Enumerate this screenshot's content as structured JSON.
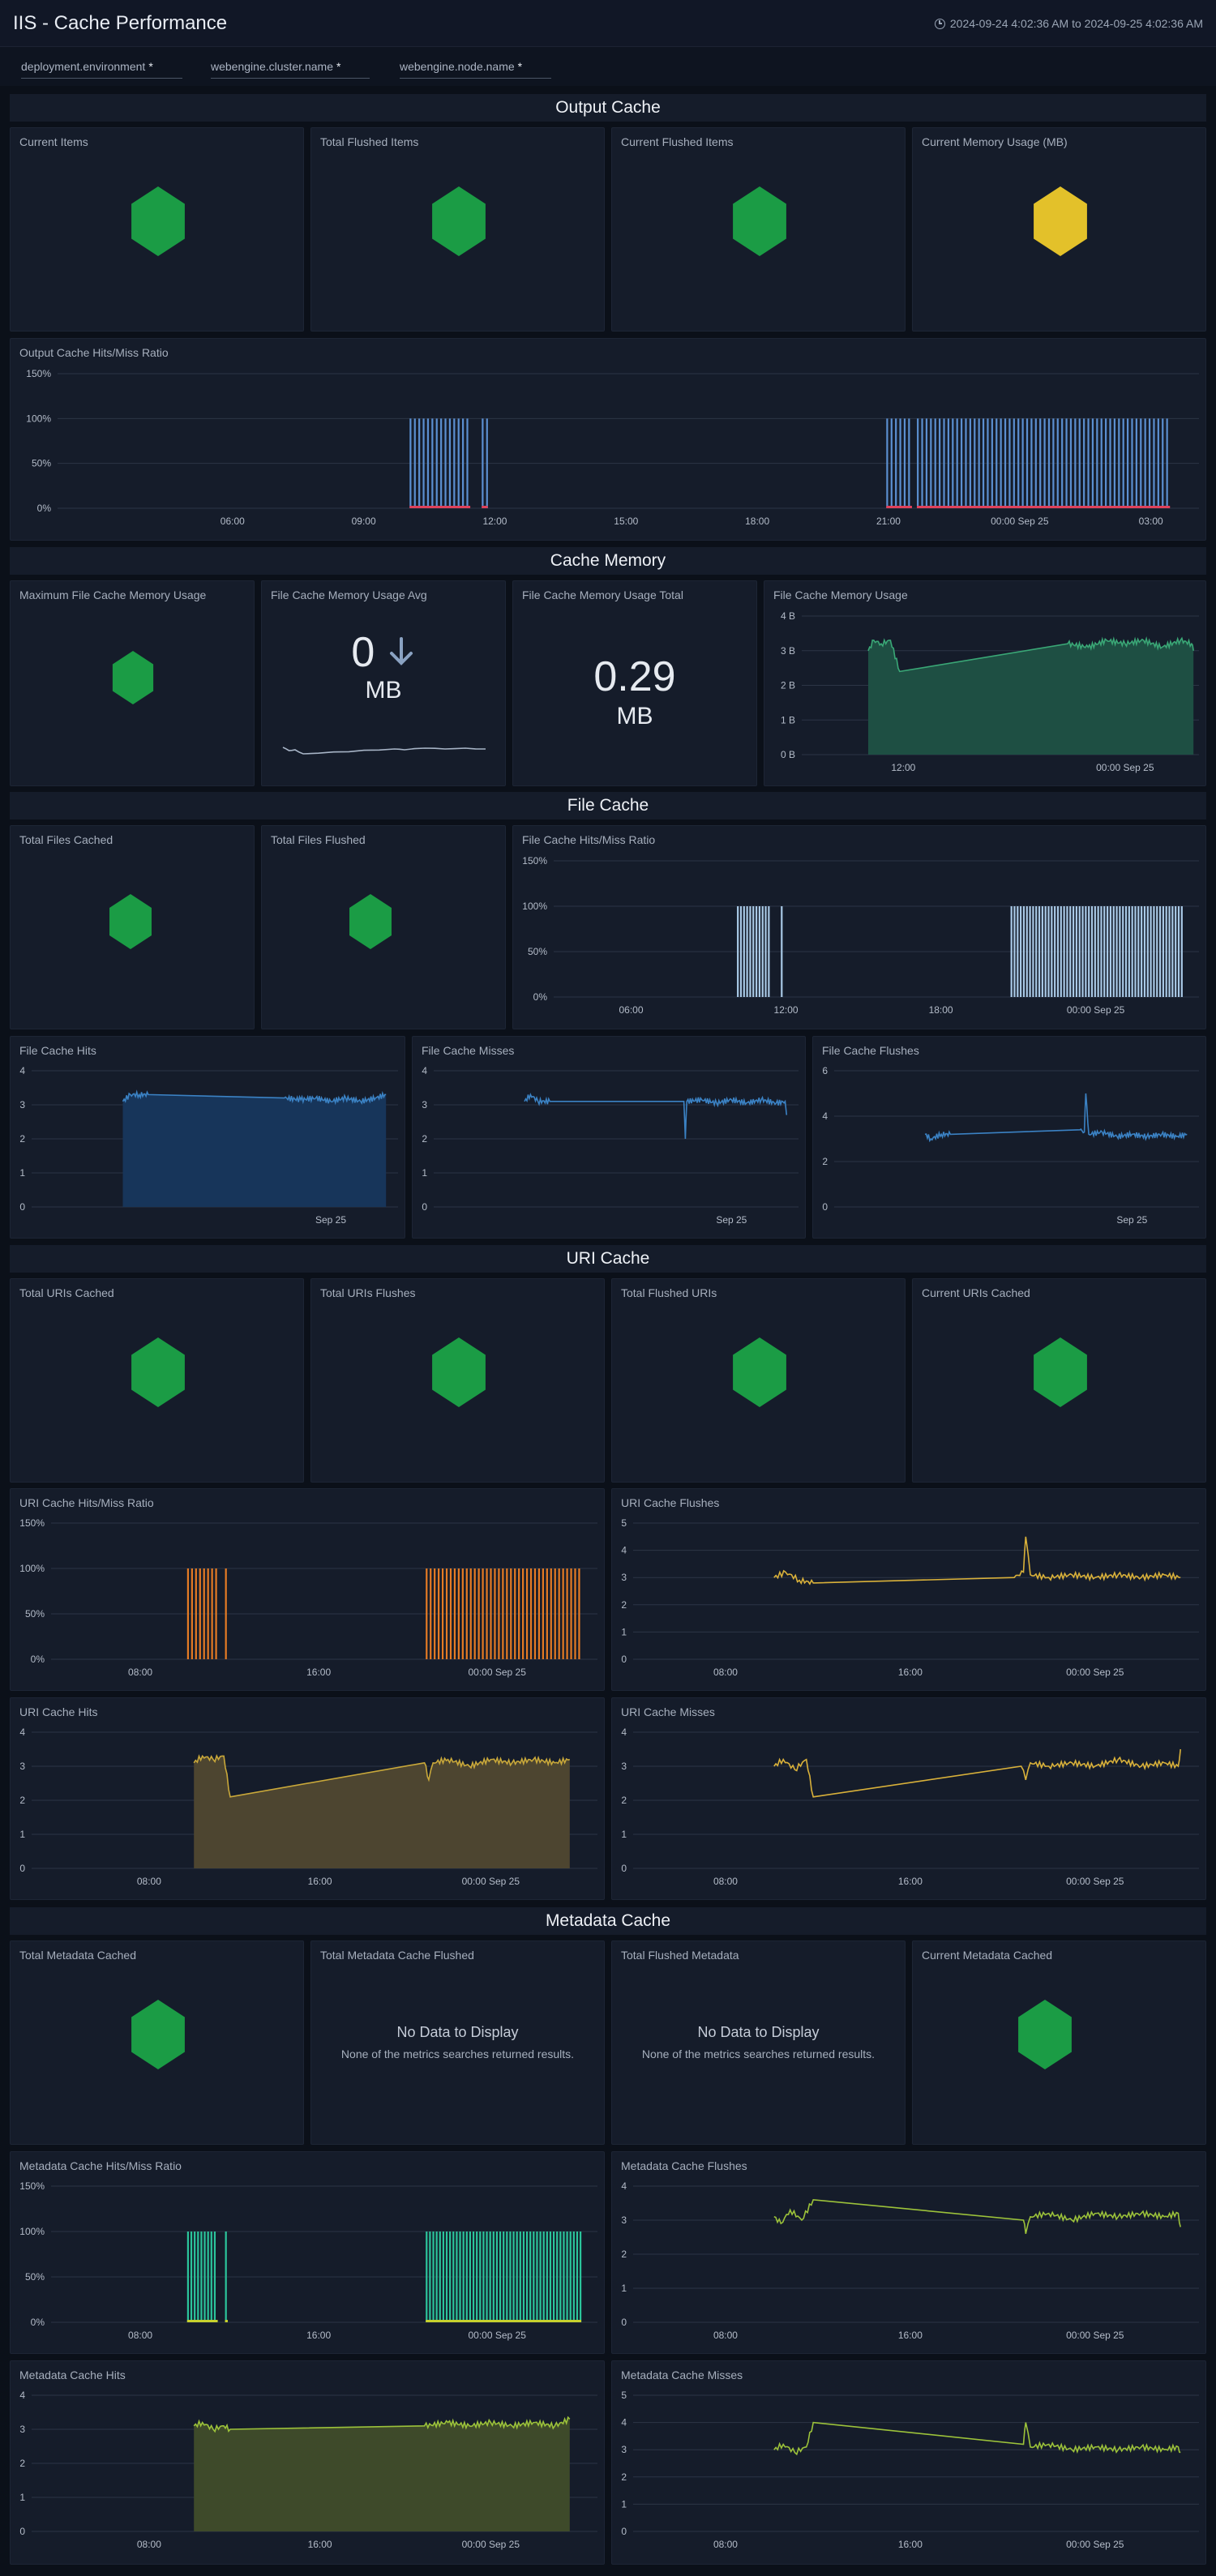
{
  "header": {
    "title": "IIS - Cache Performance",
    "time_range": "2024-09-24 4:02:36 AM to 2024-09-25 4:02:36 AM"
  },
  "filters": [
    {
      "label": "deployment.environment",
      "value": "*"
    },
    {
      "label": "webengine.cluster.name",
      "value": "*"
    },
    {
      "label": "webengine.node.name",
      "value": "*"
    }
  ],
  "sections": {
    "output_cache": "Output Cache",
    "cache_memory": "Cache Memory",
    "file_cache": "File Cache",
    "uri_cache": "URI Cache",
    "metadata_cache": "Metadata Cache"
  },
  "colors": {
    "ok": "#1b9c45",
    "warn": "#e3c12a",
    "background": "#0b1019",
    "panel": "#151c2a"
  },
  "panels": {
    "oc_current_items": {
      "title": "Current Items",
      "icon": "green-hexagon-icon",
      "status": "ok"
    },
    "oc_total_flushed": {
      "title": "Total Flushed Items",
      "icon": "green-hexagon-icon",
      "status": "ok"
    },
    "oc_current_flushed": {
      "title": "Current Flushed Items",
      "icon": "green-hexagon-icon",
      "status": "ok"
    },
    "oc_memory_usage": {
      "title": "Current Memory Usage (MB)",
      "icon": "yellow-hexagon-icon",
      "status": "warn"
    },
    "oc_hit_ratio": {
      "title": "Output Cache Hits/Miss Ratio"
    },
    "cm_max_usage": {
      "title": "Maximum File Cache Memory Usage",
      "icon": "green-hexagon-icon",
      "status": "ok"
    },
    "cm_usage_avg": {
      "title": "File Cache Memory Usage Avg",
      "value": "0",
      "unit": "MB",
      "trend_icon": "arrow-down-icon"
    },
    "cm_usage_total": {
      "title": "File Cache Memory Usage Total",
      "value": "0.29",
      "unit": "MB"
    },
    "cm_usage": {
      "title": "File Cache Memory Usage"
    },
    "fc_total_cached": {
      "title": "Total Files Cached",
      "icon": "green-hexagon-icon",
      "status": "ok"
    },
    "fc_total_flushed": {
      "title": "Total Files Flushed",
      "icon": "green-hexagon-icon",
      "status": "ok"
    },
    "fc_hit_ratio": {
      "title": "File Cache Hits/Miss Ratio"
    },
    "fc_hits": {
      "title": "File Cache Hits"
    },
    "fc_misses": {
      "title": "File Cache Misses"
    },
    "fc_flushes": {
      "title": "File Cache Flushes"
    },
    "uc_total_cached": {
      "title": "Total URIs Cached",
      "icon": "green-hexagon-icon",
      "status": "ok"
    },
    "uc_total_flushes": {
      "title": "Total URIs Flushes",
      "icon": "green-hexagon-icon",
      "status": "ok"
    },
    "uc_total_flushed": {
      "title": "Total Flushed URIs",
      "icon": "green-hexagon-icon",
      "status": "ok"
    },
    "uc_current_cached": {
      "title": "Current URIs Cached",
      "icon": "green-hexagon-icon",
      "status": "ok"
    },
    "uc_hit_ratio": {
      "title": "URI Cache Hits/Miss Ratio"
    },
    "uc_flushes": {
      "title": "URI Cache Flushes"
    },
    "uc_hits": {
      "title": "URI Cache Hits"
    },
    "uc_misses": {
      "title": "URI Cache Misses"
    },
    "mc_total_cached": {
      "title": "Total Metadata Cached",
      "icon": "green-hexagon-icon",
      "status": "ok"
    },
    "mc_total_flushed": {
      "title": "Total Metadata Cache Flushed",
      "no_data_title": "No Data to Display",
      "no_data_text": "None of the metrics searches returned results."
    },
    "mc_flushed_metadata": {
      "title": "Total Flushed Metadata",
      "no_data_title": "No Data to Display",
      "no_data_text": "None of the metrics searches returned results."
    },
    "mc_current_cached": {
      "title": "Current Metadata Cached",
      "icon": "green-hexagon-icon",
      "status": "ok"
    },
    "mc_hit_ratio": {
      "title": "Metadata Cache Hits/Miss Ratio"
    },
    "mc_flushes": {
      "title": "Metadata Cache Flushes"
    },
    "mc_hits": {
      "title": "Metadata Cache Hits"
    },
    "mc_misses": {
      "title": "Metadata Cache Misses"
    }
  },
  "chart_data": [
    {
      "id": "oc_hit_ratio",
      "type": "bar",
      "color": "#5b8fd0",
      "miss_color": "#e0415b",
      "x_range": [
        2.0,
        28.1
      ],
      "y_range": [
        0,
        150
      ],
      "ytick_values": [
        0,
        50,
        100,
        150
      ],
      "ytick_labels": [
        "0%",
        "50%",
        "100%",
        "150%"
      ],
      "xtick_values": [
        6,
        9,
        12,
        15,
        18,
        21,
        24,
        27
      ],
      "xtick_labels": [
        "06:00",
        "09:00",
        "12:00",
        "15:00",
        "18:00",
        "21:00",
        "00:00 Sep 25",
        "03:00"
      ],
      "bar_ranges": [
        [
          10.05,
          11.4
        ],
        [
          11.7,
          11.8
        ],
        [
          20.95,
          21.5
        ],
        [
          21.65,
          27.4
        ]
      ],
      "bar_step": 0.1,
      "value": 100
    },
    {
      "id": "cm_usage",
      "type": "area",
      "color": "#3aa776",
      "fill": "#1e4f43",
      "x_range": [
        6.5,
        28.0
      ],
      "y_range": [
        0,
        4
      ],
      "ytick_values": [
        0,
        1,
        2,
        3,
        4
      ],
      "ytick_labels": [
        "0 B",
        "1 B",
        "2 B",
        "3 B",
        "4 B"
      ],
      "xtick_values": [
        12,
        24
      ],
      "xtick_labels": [
        "12:00",
        "00:00 Sep 25"
      ],
      "series": [
        {
          "x": [
            10.1,
            10.4,
            10.8,
            11.3,
            11.8,
            20.9,
            22.0,
            23.0,
            24.0,
            25.0,
            26.0,
            27.0,
            27.6,
            27.7
          ],
          "y": [
            3.0,
            3.3,
            3.2,
            3.3,
            2.4,
            3.2,
            3.1,
            3.3,
            3.2,
            3.3,
            3.1,
            3.3,
            3.2,
            3.0
          ]
        }
      ]
    },
    {
      "id": "cm_usage_avg_spark",
      "type": "line",
      "color": "#a7b4c6",
      "x_range": [
        0,
        1
      ],
      "y_range": [
        0,
        1
      ],
      "series": [
        {
          "x": [
            0.0,
            0.03,
            0.06,
            0.1,
            0.55,
            0.6,
            0.7,
            0.8,
            0.9,
            1.0
          ],
          "y": [
            0.65,
            0.45,
            0.5,
            0.25,
            0.55,
            0.5,
            0.6,
            0.55,
            0.6,
            0.55
          ]
        }
      ]
    },
    {
      "id": "fc_hit_ratio",
      "type": "bar",
      "color": "#a9c9e6",
      "x_range": [
        3.0,
        28.0
      ],
      "y_range": [
        0,
        150
      ],
      "ytick_values": [
        0,
        50,
        100,
        150
      ],
      "ytick_labels": [
        "0%",
        "50%",
        "100%",
        "150%"
      ],
      "xtick_values": [
        6,
        12,
        18,
        24
      ],
      "xtick_labels": [
        "06:00",
        "12:00",
        "18:00",
        "00:00 Sep 25"
      ],
      "bar_ranges": [
        [
          10.1,
          11.4
        ],
        [
          11.8,
          11.85
        ],
        [
          20.7,
          27.4
        ]
      ],
      "bar_step": 0.12,
      "value": 100
    },
    {
      "id": "fc_hits",
      "type": "area",
      "color": "#3b82c4",
      "fill": "#17355a",
      "x_range": [
        4.0,
        28.5
      ],
      "y_range": [
        0,
        4
      ],
      "ytick_values": [
        0,
        1,
        2,
        3,
        4
      ],
      "ytick_labels": [
        "0",
        "1",
        "2",
        "3",
        "4"
      ],
      "xtick_values": [
        24
      ],
      "xtick_labels": [
        "Sep 25"
      ],
      "series": [
        {
          "x": [
            10.1,
            10.6,
            11.2,
            11.8,
            20.9,
            22.0,
            23.0,
            24.0,
            25.0,
            26.0,
            27.0,
            27.7
          ],
          "y": [
            3.1,
            3.3,
            3.3,
            3.3,
            3.2,
            3.15,
            3.2,
            3.1,
            3.2,
            3.1,
            3.2,
            3.3
          ]
        }
      ]
    },
    {
      "id": "fc_misses",
      "type": "line",
      "color": "#3b82c4",
      "x_range": [
        4.0,
        28.5
      ],
      "y_range": [
        0,
        4
      ],
      "ytick_values": [
        0,
        1,
        2,
        3,
        4
      ],
      "ytick_labels": [
        "0",
        "1",
        "2",
        "3",
        "4"
      ],
      "xtick_values": [
        24
      ],
      "xtick_labels": [
        "Sep 25"
      ],
      "series": [
        {
          "x": [
            10.1,
            10.5,
            11.0,
            11.8,
            20.8,
            20.9,
            21.0,
            22.0,
            23.0,
            24.0,
            25.0,
            26.0,
            27.0,
            27.6,
            27.7
          ],
          "y": [
            3.1,
            3.3,
            3.1,
            3.1,
            3.1,
            2.0,
            3.1,
            3.15,
            3.05,
            3.15,
            3.05,
            3.15,
            3.05,
            3.1,
            2.7
          ]
        }
      ]
    },
    {
      "id": "fc_flushes",
      "type": "line",
      "color": "#3b82c4",
      "x_range": [
        4.0,
        28.5
      ],
      "y_range": [
        0,
        6
      ],
      "ytick_values": [
        0,
        2,
        4,
        6
      ],
      "ytick_labels": [
        "0",
        "2",
        "4",
        "6"
      ],
      "xtick_values": [
        24
      ],
      "xtick_labels": [
        "Sep 25"
      ],
      "series": [
        {
          "x": [
            10.1,
            10.5,
            11.2,
            11.8,
            20.5,
            20.8,
            20.9,
            21.1,
            22.0,
            23.0,
            24.0,
            25.0,
            26.0,
            27.0,
            27.7
          ],
          "y": [
            3.2,
            3.0,
            3.2,
            3.2,
            3.4,
            3.3,
            5.0,
            3.2,
            3.3,
            3.1,
            3.2,
            3.1,
            3.2,
            3.1,
            3.2
          ]
        }
      ]
    },
    {
      "id": "uc_hit_ratio",
      "type": "bar",
      "color": "#e57b24",
      "x_range": [
        4.0,
        28.5
      ],
      "y_range": [
        0,
        150
      ],
      "ytick_values": [
        0,
        50,
        100,
        150
      ],
      "ytick_labels": [
        "0%",
        "50%",
        "100%",
        "150%"
      ],
      "xtick_values": [
        8,
        16,
        24
      ],
      "xtick_labels": [
        "08:00",
        "16:00",
        "00:00 Sep 25"
      ],
      "bar_ranges": [
        [
          10.1,
          11.4
        ],
        [
          11.8,
          11.85
        ],
        [
          20.8,
          27.7
        ]
      ],
      "bar_step": 0.18,
      "value": 100
    },
    {
      "id": "uc_flushes",
      "type": "line",
      "color": "#d9b13a",
      "x_range": [
        4.0,
        28.5
      ],
      "y_range": [
        0,
        5
      ],
      "ytick_values": [
        0,
        1,
        2,
        3,
        4,
        5
      ],
      "ytick_labels": [
        "0",
        "1",
        "2",
        "3",
        "4",
        "5"
      ],
      "xtick_values": [
        8,
        16,
        24
      ],
      "xtick_labels": [
        "08:00",
        "16:00",
        "00:00 Sep 25"
      ],
      "series": [
        {
          "x": [
            10.1,
            10.6,
            11.2,
            11.8,
            20.5,
            20.9,
            21.0,
            21.2,
            22.0,
            23.0,
            24.0,
            25.0,
            26.0,
            27.0,
            27.7
          ],
          "y": [
            3.0,
            3.2,
            2.9,
            2.8,
            3.0,
            3.2,
            4.5,
            3.1,
            3.0,
            3.1,
            3.0,
            3.1,
            3.0,
            3.1,
            3.0
          ]
        }
      ]
    },
    {
      "id": "uc_hits",
      "type": "area",
      "color": "#c9a83a",
      "fill": "#4d4530",
      "x_range": [
        2.5,
        29.0
      ],
      "y_range": [
        0,
        4
      ],
      "ytick_values": [
        0,
        1,
        2,
        3,
        4
      ],
      "ytick_labels": [
        "0",
        "1",
        "2",
        "3",
        "4"
      ],
      "xtick_values": [
        8,
        16,
        24
      ],
      "xtick_labels": [
        "08:00",
        "16:00",
        "00:00 Sep 25"
      ],
      "series": [
        {
          "x": [
            10.1,
            10.5,
            11.0,
            11.5,
            11.8,
            20.9,
            21.1,
            21.3,
            22.0,
            23.0,
            24.0,
            25.0,
            26.0,
            27.0,
            27.7
          ],
          "y": [
            3.1,
            3.3,
            3.2,
            3.3,
            2.1,
            3.1,
            2.6,
            3.1,
            3.2,
            3.0,
            3.2,
            3.1,
            3.2,
            3.1,
            3.2
          ]
        }
      ]
    },
    {
      "id": "uc_misses",
      "type": "line",
      "color": "#d9b13a",
      "x_range": [
        4.0,
        28.5
      ],
      "y_range": [
        0,
        4
      ],
      "ytick_values": [
        0,
        1,
        2,
        3,
        4
      ],
      "ytick_labels": [
        "0",
        "1",
        "2",
        "3",
        "4"
      ],
      "xtick_values": [
        8,
        16,
        24
      ],
      "xtick_labels": [
        "08:00",
        "16:00",
        "00:00 Sep 25"
      ],
      "series": [
        {
          "x": [
            10.1,
            10.5,
            11.0,
            11.5,
            11.8,
            20.8,
            21.0,
            21.2,
            22.0,
            23.0,
            24.0,
            25.0,
            26.0,
            27.0,
            27.6,
            27.7
          ],
          "y": [
            3.0,
            3.2,
            2.9,
            3.2,
            2.1,
            3.0,
            2.6,
            3.1,
            3.0,
            3.1,
            3.0,
            3.2,
            3.0,
            3.1,
            3.0,
            3.5
          ]
        }
      ]
    },
    {
      "id": "mc_hit_ratio",
      "type": "bar",
      "color": "#2bc49b",
      "miss_color": "#c7d12e",
      "x_range": [
        4.0,
        28.5
      ],
      "y_range": [
        0,
        150
      ],
      "ytick_values": [
        0,
        50,
        100,
        150
      ],
      "ytick_labels": [
        "0%",
        "50%",
        "100%",
        "150%"
      ],
      "xtick_values": [
        8,
        16,
        24
      ],
      "xtick_labels": [
        "08:00",
        "16:00",
        "00:00 Sep 25"
      ],
      "bar_ranges": [
        [
          10.1,
          11.4
        ],
        [
          11.8,
          11.85
        ],
        [
          20.8,
          27.7
        ]
      ],
      "bar_step": 0.15,
      "value": 100
    },
    {
      "id": "mc_flushes",
      "type": "line",
      "color": "#9cc23a",
      "x_range": [
        4.0,
        28.5
      ],
      "y_range": [
        0,
        4
      ],
      "ytick_values": [
        0,
        1,
        2,
        3,
        4
      ],
      "ytick_labels": [
        "0",
        "1",
        "2",
        "3",
        "4"
      ],
      "xtick_values": [
        8,
        16,
        24
      ],
      "xtick_labels": [
        "08:00",
        "16:00",
        "00:00 Sep 25"
      ],
      "series": [
        {
          "x": [
            10.1,
            10.4,
            10.8,
            11.3,
            11.8,
            20.9,
            21.0,
            21.2,
            22.0,
            23.0,
            24.0,
            25.0,
            26.0,
            27.0,
            27.6,
            27.7
          ],
          "y": [
            3.1,
            2.9,
            3.3,
            3.0,
            3.6,
            3.0,
            2.6,
            3.1,
            3.2,
            3.0,
            3.2,
            3.1,
            3.2,
            3.1,
            3.2,
            2.8
          ]
        }
      ]
    },
    {
      "id": "mc_hits",
      "type": "area",
      "color": "#9cc23a",
      "fill": "#3e4a2a",
      "x_range": [
        2.5,
        29.0
      ],
      "y_range": [
        0,
        4
      ],
      "ytick_values": [
        0,
        1,
        2,
        3,
        4
      ],
      "ytick_labels": [
        "0",
        "1",
        "2",
        "3",
        "4"
      ],
      "xtick_values": [
        8,
        16,
        24
      ],
      "xtick_labels": [
        "08:00",
        "16:00",
        "00:00 Sep 25"
      ],
      "series": [
        {
          "x": [
            10.1,
            10.5,
            11.0,
            11.5,
            11.8,
            20.9,
            22.0,
            23.0,
            24.0,
            25.0,
            26.0,
            27.0,
            27.7
          ],
          "y": [
            3.1,
            3.2,
            3.0,
            3.1,
            3.0,
            3.1,
            3.2,
            3.1,
            3.2,
            3.1,
            3.2,
            3.1,
            3.3
          ]
        }
      ]
    },
    {
      "id": "mc_misses",
      "type": "line",
      "color": "#9cc23a",
      "x_range": [
        4.0,
        28.5
      ],
      "y_range": [
        0,
        5
      ],
      "ytick_values": [
        0,
        1,
        2,
        3,
        4,
        5
      ],
      "ytick_labels": [
        "0",
        "1",
        "2",
        "3",
        "4",
        "5"
      ],
      "xtick_values": [
        8,
        16,
        24
      ],
      "xtick_labels": [
        "08:00",
        "16:00",
        "00:00 Sep 25"
      ],
      "series": [
        {
          "x": [
            10.1,
            10.5,
            11.0,
            11.5,
            11.8,
            20.9,
            21.0,
            21.2,
            22.0,
            23.0,
            24.0,
            25.0,
            26.0,
            27.0,
            27.6,
            27.7
          ],
          "y": [
            3.0,
            3.2,
            2.9,
            3.1,
            4.0,
            3.2,
            4.0,
            3.1,
            3.2,
            3.0,
            3.1,
            3.0,
            3.1,
            3.0,
            3.1,
            2.9
          ]
        }
      ]
    }
  ]
}
